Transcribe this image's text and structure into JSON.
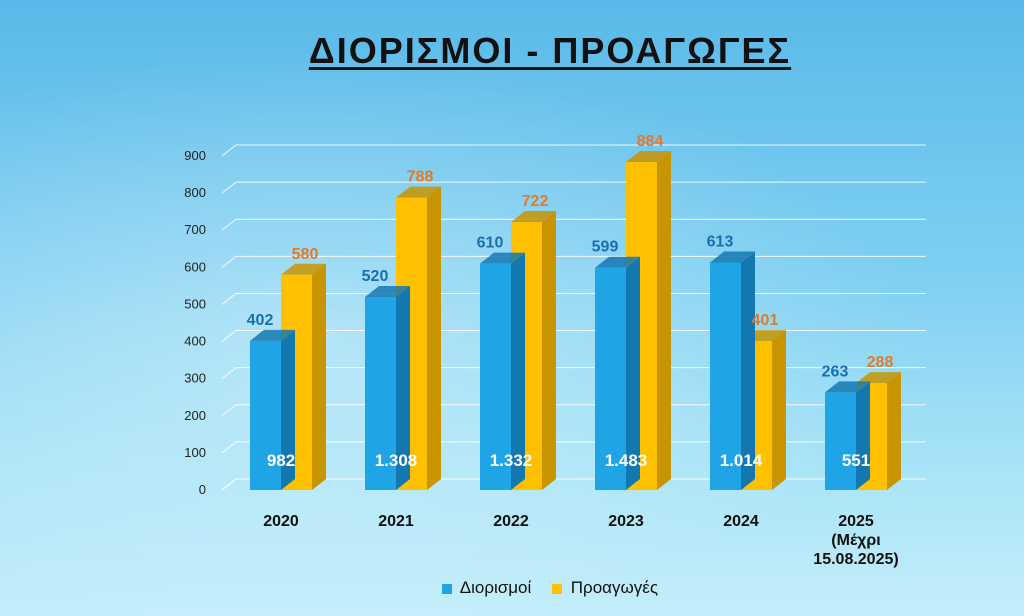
{
  "title": "ΔΙΟΡΙΣΜΟΙ - ΠΡΟΑΓΩΓΕΣ",
  "colors": {
    "diorismoi": "#1fa4e6",
    "diorismoi_side": "#1478b0",
    "proagoges": "#ffc000",
    "proagoges_side": "#c89400",
    "label_diorismoi": "#1a6fb0",
    "label_proagoges": "#e07b2a",
    "total_label": "#ffffff"
  },
  "chart_data": {
    "type": "bar",
    "title": "ΔΙΟΡΙΣΜΟΙ - ΠΡΟΑΓΩΓΕΣ",
    "categories": [
      [
        "2020"
      ],
      [
        "2021"
      ],
      [
        "2022"
      ],
      [
        "2023"
      ],
      [
        "2024"
      ],
      [
        "2025",
        "(Μέχρι",
        "15.08.2025)"
      ]
    ],
    "series": [
      {
        "name": "Διορισμοί",
        "values": [
          402,
          520,
          610,
          599,
          613,
          263
        ]
      },
      {
        "name": "Προαγωγές",
        "values": [
          580,
          788,
          722,
          884,
          401,
          288
        ]
      }
    ],
    "totals": [
      "982",
      "1.308",
      "1.332",
      "1.483",
      "1.014",
      "551"
    ],
    "yticks": [
      0,
      100,
      200,
      300,
      400,
      500,
      600,
      700,
      800,
      900
    ],
    "ylim": [
      0,
      900
    ],
    "grid": true,
    "legend_position": "bottom"
  }
}
